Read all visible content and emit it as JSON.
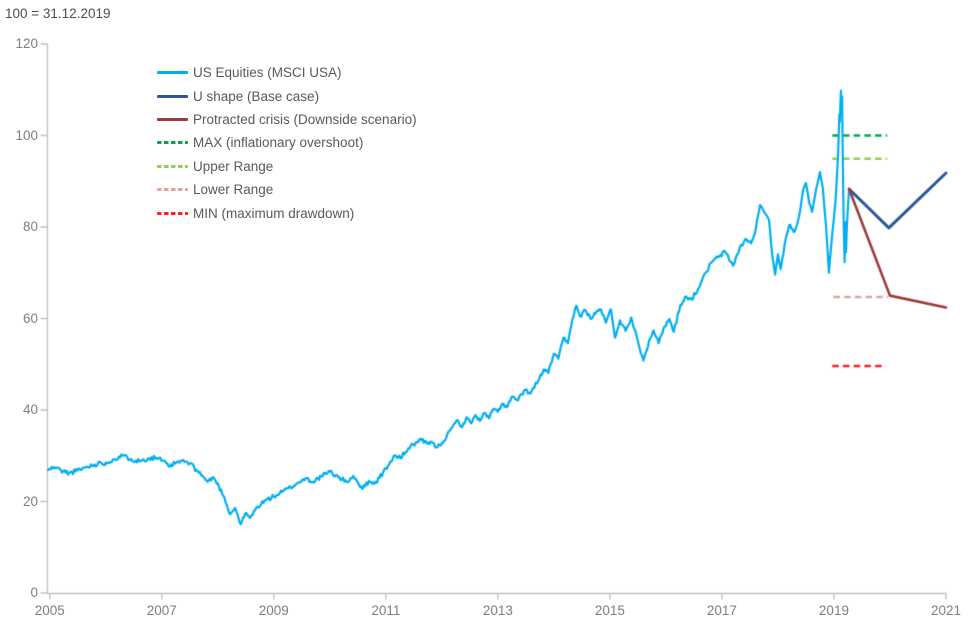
{
  "header": {
    "note": "100 = 31.12.2019"
  },
  "colors": {
    "background": "#FFFFFF",
    "axis": "#BFBFBF",
    "tick_label": "#7F7F7F",
    "title_text": "#4D4D4D",
    "legend_text": "#595959"
  },
  "chart_data": {
    "type": "line",
    "title": "100 = 31.12.2019",
    "xlabel": "",
    "ylabel": "",
    "grid": false,
    "legend_position": "top-left-inside",
    "x_axis": {
      "tick_labels": [
        "2005",
        "2007",
        "2009",
        "2011",
        "2013",
        "2015",
        "2017",
        "2019",
        "2021"
      ],
      "tick_values": [
        2005,
        2007,
        2009,
        2011,
        2013,
        2015,
        2017,
        2019,
        2021
      ],
      "range": [
        2004.96,
        2021
      ]
    },
    "y_axis": {
      "tick_labels": [
        "0",
        "20",
        "40",
        "60",
        "80",
        "100",
        "120"
      ],
      "tick_values": [
        0,
        20,
        40,
        60,
        80,
        100,
        120
      ],
      "range": [
        0,
        120
      ]
    },
    "series": [
      {
        "name": "US Equities (MSCI USA)",
        "color": "#00AEEF",
        "style": "solid",
        "width": 2.2,
        "noisy": true,
        "points": [
          [
            2004.97,
            26.9
          ],
          [
            2005.08,
            27.5
          ],
          [
            2005.2,
            26.8
          ],
          [
            2005.35,
            26.2
          ],
          [
            2005.5,
            26.8
          ],
          [
            2005.65,
            27.5
          ],
          [
            2005.8,
            28.1
          ],
          [
            2005.92,
            28.4
          ],
          [
            2006.02,
            28.3
          ],
          [
            2006.13,
            29.2
          ],
          [
            2006.3,
            30.0
          ],
          [
            2006.45,
            29.3
          ],
          [
            2006.6,
            28.8
          ],
          [
            2006.75,
            29.4
          ],
          [
            2006.9,
            29.6
          ],
          [
            2007.02,
            28.9
          ],
          [
            2007.12,
            27.7
          ],
          [
            2007.24,
            28.3
          ],
          [
            2007.36,
            28.9
          ],
          [
            2007.5,
            28.3
          ],
          [
            2007.62,
            26.9
          ],
          [
            2007.72,
            25.7
          ],
          [
            2007.82,
            24.3
          ],
          [
            2007.92,
            25.3
          ],
          [
            2008.02,
            23.3
          ],
          [
            2008.12,
            20.8
          ],
          [
            2008.22,
            17.2
          ],
          [
            2008.31,
            18.6
          ],
          [
            2008.41,
            15.0
          ],
          [
            2008.49,
            17.4
          ],
          [
            2008.58,
            16.4
          ],
          [
            2008.71,
            18.9
          ],
          [
            2008.86,
            20.3
          ],
          [
            2009.0,
            21.1
          ],
          [
            2009.15,
            22.1
          ],
          [
            2009.3,
            23.1
          ],
          [
            2009.45,
            24.2
          ],
          [
            2009.57,
            25.1
          ],
          [
            2009.7,
            24.3
          ],
          [
            2009.85,
            25.5
          ],
          [
            2010.0,
            26.5
          ],
          [
            2010.15,
            25.3
          ],
          [
            2010.3,
            24.3
          ],
          [
            2010.42,
            25.6
          ],
          [
            2010.5,
            24.2
          ],
          [
            2010.58,
            22.7
          ],
          [
            2010.7,
            24.5
          ],
          [
            2010.8,
            23.9
          ],
          [
            2010.95,
            26.3
          ],
          [
            2011.06,
            28.1
          ],
          [
            2011.14,
            29.9
          ],
          [
            2011.26,
            29.5
          ],
          [
            2011.4,
            31.6
          ],
          [
            2011.53,
            32.8
          ],
          [
            2011.64,
            33.4
          ],
          [
            2011.74,
            32.6
          ],
          [
            2011.82,
            33.0
          ],
          [
            2011.9,
            31.8
          ],
          [
            2012.0,
            32.8
          ],
          [
            2012.08,
            34.0
          ],
          [
            2012.19,
            36.3
          ],
          [
            2012.28,
            37.8
          ],
          [
            2012.36,
            36.2
          ],
          [
            2012.44,
            38.4
          ],
          [
            2012.52,
            37.1
          ],
          [
            2012.6,
            38.9
          ],
          [
            2012.68,
            37.6
          ],
          [
            2012.76,
            39.4
          ],
          [
            2012.84,
            38.2
          ],
          [
            2012.92,
            40.3
          ],
          [
            2013.0,
            39.6
          ],
          [
            2013.08,
            41.4
          ],
          [
            2013.16,
            40.6
          ],
          [
            2013.26,
            42.9
          ],
          [
            2013.36,
            42.1
          ],
          [
            2013.49,
            44.4
          ],
          [
            2013.58,
            43.6
          ],
          [
            2013.72,
            46.4
          ],
          [
            2013.82,
            48.9
          ],
          [
            2013.9,
            48.1
          ],
          [
            2014.0,
            52.3
          ],
          [
            2014.08,
            51.2
          ],
          [
            2014.17,
            55.8
          ],
          [
            2014.25,
            54.6
          ],
          [
            2014.33,
            59.8
          ],
          [
            2014.4,
            62.8
          ],
          [
            2014.47,
            60.4
          ],
          [
            2014.56,
            61.9
          ],
          [
            2014.66,
            59.9
          ],
          [
            2014.76,
            61.5
          ],
          [
            2014.84,
            62.0
          ],
          [
            2014.93,
            59.1
          ],
          [
            2015.02,
            62.0
          ],
          [
            2015.09,
            55.8
          ],
          [
            2015.18,
            59.6
          ],
          [
            2015.28,
            57.3
          ],
          [
            2015.38,
            60.2
          ],
          [
            2015.48,
            56.0
          ],
          [
            2015.6,
            50.8
          ],
          [
            2015.7,
            55.2
          ],
          [
            2015.78,
            57.4
          ],
          [
            2015.87,
            54.6
          ],
          [
            2015.96,
            57.9
          ],
          [
            2016.06,
            59.9
          ],
          [
            2016.14,
            57.1
          ],
          [
            2016.26,
            63.0
          ],
          [
            2016.36,
            64.8
          ],
          [
            2016.46,
            64.1
          ],
          [
            2016.62,
            67.6
          ],
          [
            2016.8,
            72.1
          ],
          [
            2016.93,
            73.4
          ],
          [
            2017.06,
            74.6
          ],
          [
            2017.2,
            71.5
          ],
          [
            2017.32,
            75.6
          ],
          [
            2017.44,
            77.3
          ],
          [
            2017.52,
            76.4
          ],
          [
            2017.58,
            78.3
          ],
          [
            2017.68,
            84.8
          ],
          [
            2017.76,
            83.2
          ],
          [
            2017.84,
            81.5
          ],
          [
            2017.9,
            73.8
          ],
          [
            2017.95,
            69.6
          ],
          [
            2018.0,
            74.0
          ],
          [
            2018.05,
            70.8
          ],
          [
            2018.12,
            76.2
          ],
          [
            2018.2,
            80.4
          ],
          [
            2018.3,
            79.0
          ],
          [
            2018.38,
            82.6
          ],
          [
            2018.45,
            88.1
          ],
          [
            2018.5,
            89.6
          ],
          [
            2018.56,
            85.2
          ],
          [
            2018.61,
            83.3
          ],
          [
            2018.68,
            88.2
          ],
          [
            2018.75,
            92.0
          ],
          [
            2018.8,
            88.6
          ],
          [
            2018.86,
            80.0
          ],
          [
            2018.91,
            70.0
          ],
          [
            2018.97,
            78.6
          ],
          [
            2019.0,
            82.0
          ],
          [
            2019.03,
            86.0
          ],
          [
            2019.05,
            90.5
          ],
          [
            2019.07,
            95.0
          ],
          [
            2019.085,
            100.0
          ],
          [
            2019.095,
            104.5
          ],
          [
            2019.105,
            103.0
          ],
          [
            2019.115,
            107.0
          ],
          [
            2019.125,
            109.8
          ],
          [
            2019.135,
            105.0
          ],
          [
            2019.145,
            108.5
          ],
          [
            2019.155,
            98.0
          ],
          [
            2019.165,
            88.0
          ],
          [
            2019.175,
            80.0
          ],
          [
            2019.19,
            72.3
          ],
          [
            2019.205,
            81.0
          ],
          [
            2019.215,
            74.5
          ],
          [
            2019.23,
            80.0
          ],
          [
            2019.25,
            84.5
          ],
          [
            2019.27,
            88.3
          ]
        ]
      },
      {
        "name": "U shape (Base case)",
        "color": "#2F5597",
        "style": "solid",
        "width": 3,
        "points": [
          [
            2019.27,
            88.3
          ],
          [
            2019.98,
            79.8
          ],
          [
            2021.0,
            91.8
          ]
        ]
      },
      {
        "name": "Protracted crisis (Downside scenario)",
        "color": "#9E3B38",
        "style": "solid",
        "width": 2.6,
        "points": [
          [
            2019.27,
            88.3
          ],
          [
            2020.0,
            65.0
          ],
          [
            2021.0,
            62.4
          ]
        ]
      },
      {
        "name": "MAX (inflationary overshoot)",
        "color": "#00A651",
        "style": "dashed",
        "width": 2.5,
        "points": [
          [
            2018.97,
            100.0
          ],
          [
            2019.95,
            100.0
          ]
        ]
      },
      {
        "name": "Upper Range",
        "color": "#92D050",
        "style": "dashed",
        "width": 2.5,
        "points": [
          [
            2018.97,
            94.9
          ],
          [
            2019.95,
            94.9
          ]
        ]
      },
      {
        "name": "Lower Range",
        "color": "#E2A2A2",
        "style": "dashed",
        "width": 2.5,
        "points": [
          [
            2018.99,
            64.7
          ],
          [
            2019.97,
            64.7
          ]
        ]
      },
      {
        "name": "MIN (maximum drawdown)",
        "color": "#FF1F1F",
        "style": "dashed",
        "width": 2.5,
        "points": [
          [
            2018.97,
            49.6
          ],
          [
            2019.93,
            49.6
          ]
        ]
      }
    ],
    "render": {
      "draw_order": [
        3,
        4,
        5,
        6,
        0,
        1,
        2
      ],
      "noise_amplitude": 0.5,
      "noise_seed": 11,
      "densify_step_years": 0.022,
      "dash_pattern": [
        6.5,
        4.2
      ]
    }
  }
}
